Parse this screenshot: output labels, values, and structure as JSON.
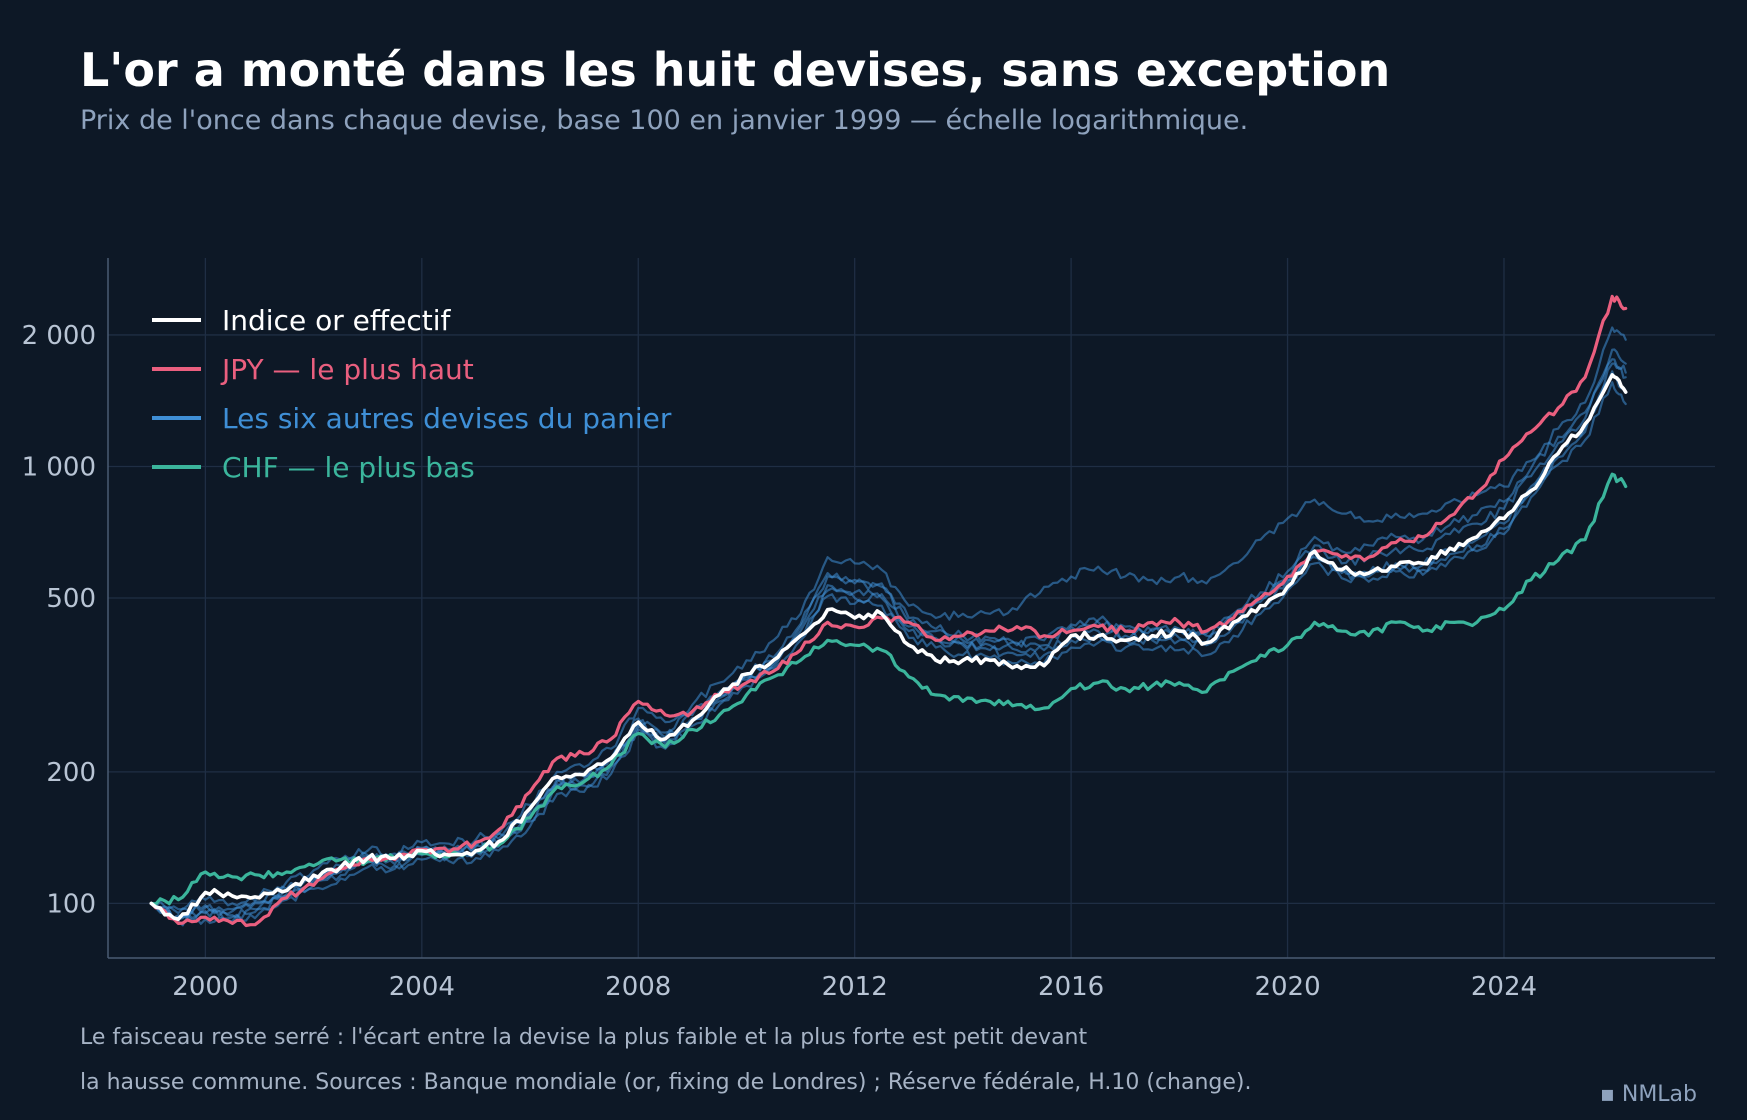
{
  "chart_data": {
    "type": "line",
    "title": "L'or a monté dans les huit devises, sans exception",
    "subtitle": "Prix de l'once dans chaque devise, base 100 en janvier 1999 — échelle logarithmique.",
    "y_scale": "log",
    "ylim": [
      75,
      3000
    ],
    "xlim": [
      1998.2,
      2027.9
    ],
    "x_ticks": [
      2000,
      2004,
      2008,
      2012,
      2016,
      2020,
      2024
    ],
    "x_tick_labels": [
      "2000",
      "2004",
      "2008",
      "2012",
      "2016",
      "2020",
      "2024"
    ],
    "y_ticks": [
      100,
      200,
      500,
      1000,
      2000
    ],
    "y_tick_labels": [
      "100",
      "200",
      "500",
      "1 000",
      "2 000"
    ],
    "grid": true,
    "legend_position": "top-left",
    "legend": [
      {
        "label": "Indice or effectif",
        "color": "#ffffff"
      },
      {
        "label": "JPY — le plus haut",
        "color": "#ea5f7f"
      },
      {
        "label": "Les six autres devises du panier",
        "color": "#3f8fd6"
      },
      {
        "label": "CHF — le plus bas",
        "color": "#3bb59c"
      }
    ],
    "x": [
      1999.0,
      1999.5,
      2000.0,
      2000.5,
      2001.0,
      2001.5,
      2002.0,
      2002.5,
      2003.0,
      2003.5,
      2004.0,
      2004.5,
      2005.0,
      2005.5,
      2006.0,
      2006.5,
      2007.0,
      2007.5,
      2008.0,
      2008.5,
      2009.0,
      2009.5,
      2010.0,
      2010.5,
      2011.0,
      2011.5,
      2012.0,
      2012.5,
      2013.0,
      2013.5,
      2014.0,
      2014.5,
      2015.0,
      2015.5,
      2016.0,
      2016.5,
      2017.0,
      2017.5,
      2018.0,
      2018.5,
      2019.0,
      2019.5,
      2020.0,
      2020.5,
      2021.0,
      2021.5,
      2022.0,
      2022.5,
      2023.0,
      2023.5,
      2024.0,
      2024.5,
      2025.0,
      2025.5,
      2026.0,
      2026.25
    ],
    "series": [
      {
        "role": "other",
        "color": "#3f8fd6",
        "values": [
          100,
          94,
          98,
          96,
          100,
          107,
          114,
          120,
          128,
          126,
          133,
          132,
          135,
          143,
          160,
          190,
          192,
          212,
          260,
          240,
          270,
          300,
          330,
          360,
          430,
          560,
          540,
          530,
          440,
          420,
          400,
          400,
          390,
          390,
          430,
          440,
          420,
          420,
          420,
          410,
          450,
          500,
          560,
          660,
          600,
          620,
          650,
          640,
          700,
          740,
          800,
          950,
          1130,
          1290,
          1850,
          1720
        ]
      },
      {
        "role": "other",
        "color": "#3f8fd6",
        "values": [
          100,
          97,
          102,
          100,
          104,
          112,
          119,
          126,
          132,
          130,
          138,
          137,
          140,
          149,
          168,
          200,
          205,
          226,
          280,
          260,
          285,
          320,
          360,
          400,
          460,
          620,
          600,
          580,
          480,
          450,
          460,
          460,
          470,
          530,
          560,
          590,
          560,
          550,
          560,
          540,
          600,
          680,
          760,
          840,
          780,
          750,
          780,
          780,
          830,
          860,
          900,
          1030,
          1220,
          1400,
          2080,
          1950
        ]
      },
      {
        "role": "other",
        "color": "#3f8fd6",
        "values": [
          100,
          92,
          95,
          93,
          97,
          104,
          110,
          116,
          124,
          122,
          129,
          128,
          131,
          139,
          154,
          184,
          186,
          205,
          250,
          232,
          262,
          290,
          320,
          350,
          410,
          520,
          500,
          500,
          420,
          400,
          390,
          380,
          370,
          370,
          400,
          410,
          400,
          400,
          400,
          390,
          430,
          480,
          540,
          620,
          570,
          560,
          590,
          580,
          630,
          660,
          720,
          870,
          1050,
          1200,
          1720,
          1600
        ]
      },
      {
        "role": "other",
        "color": "#3f8fd6",
        "values": [
          100,
          93,
          96,
          94,
          98,
          105,
          112,
          118,
          125,
          123,
          130,
          129,
          132,
          140,
          156,
          187,
          189,
          208,
          255,
          236,
          266,
          295,
          325,
          355,
          420,
          535,
          515,
          510,
          430,
          405,
          395,
          390,
          380,
          380,
          410,
          420,
          410,
          405,
          405,
          395,
          440,
          490,
          550,
          635,
          585,
          570,
          600,
          595,
          645,
          680,
          740,
          900,
          1080,
          1230,
          1650,
          1480
        ]
      },
      {
        "role": "other",
        "color": "#3f8fd6",
        "values": [
          100,
          95,
          99,
          97,
          101,
          108,
          115,
          122,
          129,
          127,
          134,
          133,
          136,
          144,
          162,
          193,
          195,
          215,
          265,
          246,
          276,
          305,
          336,
          366,
          436,
          570,
          550,
          540,
          450,
          425,
          410,
          405,
          395,
          400,
          435,
          445,
          430,
          425,
          425,
          415,
          460,
          515,
          575,
          690,
          640,
          660,
          690,
          680,
          735,
          775,
          830,
          990,
          1170,
          1330,
          1760,
          1640
        ]
      },
      {
        "role": "other",
        "color": "#3f8fd6",
        "values": [
          100,
          91,
          92,
          91,
          95,
          102,
          108,
          114,
          121,
          120,
          126,
          125,
          127,
          135,
          150,
          178,
          180,
          198,
          245,
          226,
          255,
          285,
          315,
          345,
          400,
          505,
          485,
          480,
          405,
          385,
          370,
          365,
          355,
          355,
          385,
          395,
          385,
          380,
          380,
          370,
          410,
          460,
          520,
          600,
          555,
          545,
          575,
          565,
          610,
          640,
          700,
          850,
          1010,
          1150,
          1560,
          1390
        ]
      },
      {
        "role": "chf",
        "color": "#3bb59c",
        "values": [
          100,
          102,
          118,
          115,
          116,
          118,
          122,
          126,
          125,
          127,
          130,
          128,
          132,
          138,
          157,
          185,
          190,
          208,
          245,
          228,
          250,
          270,
          300,
          330,
          360,
          400,
          390,
          380,
          330,
          300,
          290,
          290,
          285,
          280,
          310,
          320,
          310,
          315,
          320,
          305,
          340,
          370,
          390,
          440,
          420,
          410,
          440,
          420,
          440,
          440,
          470,
          550,
          610,
          680,
          960,
          900
        ]
      },
      {
        "role": "jpy",
        "color": "#ea5f7f",
        "values": [
          100,
          90,
          93,
          90,
          91,
          103,
          110,
          120,
          127,
          126,
          133,
          131,
          138,
          150,
          180,
          215,
          220,
          238,
          290,
          270,
          275,
          300,
          320,
          340,
          380,
          440,
          430,
          450,
          440,
          400,
          410,
          420,
          430,
          410,
          420,
          430,
          420,
          440,
          440,
          420,
          450,
          500,
          560,
          640,
          620,
          620,
          670,
          690,
          770,
          870,
          1040,
          1200,
          1360,
          1600,
          2450,
          2300
        ]
      },
      {
        "role": "index",
        "color": "#ffffff",
        "values": [
          100,
          92,
          106,
          104,
          103,
          107,
          116,
          121,
          127,
          127,
          132,
          129,
          132,
          140,
          165,
          195,
          197,
          215,
          260,
          238,
          262,
          300,
          335,
          360,
          410,
          470,
          450,
          460,
          390,
          360,
          360,
          360,
          350,
          350,
          410,
          410,
          400,
          410,
          420,
          395,
          440,
          480,
          530,
          640,
          580,
          570,
          590,
          600,
          650,
          690,
          760,
          880,
          1070,
          1250,
          1620,
          1480
        ]
      }
    ]
  },
  "footnote": {
    "line1": "Le faisceau reste serré : l'écart entre la devise la plus faible et la plus forte est petit devant",
    "line2": "la hausse commune. Sources : Banque mondiale (or, fixing de Londres) ; Réserve fédérale, H.10 (change)."
  },
  "brand": "▪ NMLab"
}
